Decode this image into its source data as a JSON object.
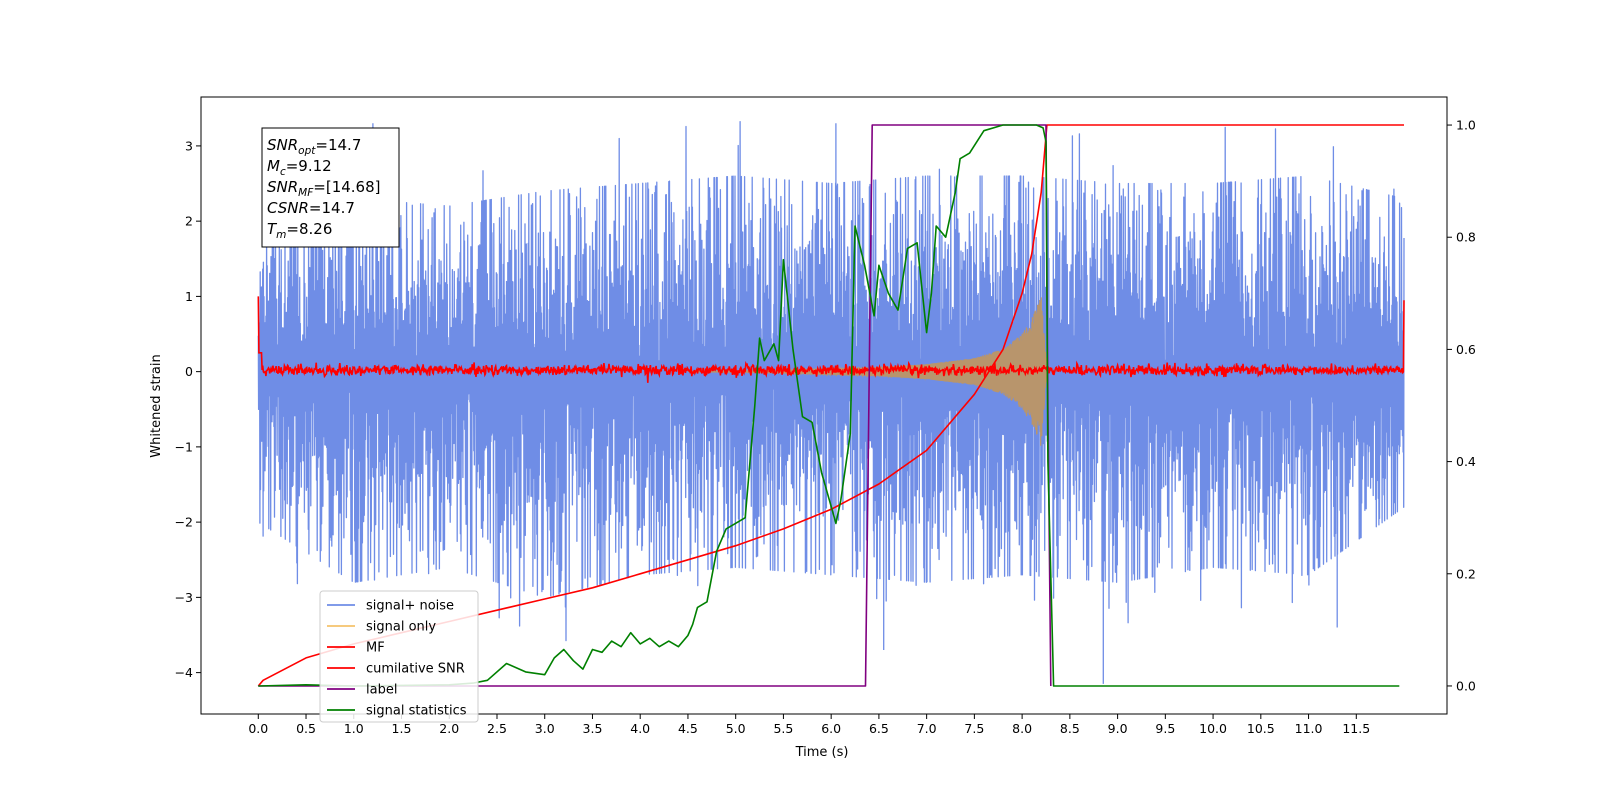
{
  "chart_data": {
    "type": "line",
    "xlabel": "Time (s)",
    "ylabel": "Whitened strain",
    "xlim": [
      -0.6,
      12.45
    ],
    "ylim": [
      -4.55,
      3.65
    ],
    "y2lim": [
      -0.05,
      1.05
    ],
    "x_ticks": [
      "0.0",
      "0.5",
      "1.0",
      "1.5",
      "2.0",
      "2.5",
      "3.0",
      "3.5",
      "4.0",
      "4.5",
      "5.0",
      "5.5",
      "6.0",
      "6.5",
      "7.0",
      "7.5",
      "8.0",
      "8.5",
      "9.0",
      "9.5",
      "10.0",
      "10.5",
      "11.0",
      "11.5"
    ],
    "y_ticks": [
      "3",
      "2",
      "1",
      "0",
      "−1",
      "−2",
      "−3",
      "−4"
    ],
    "y2_ticks": [
      "1.0",
      "0.8",
      "0.6",
      "0.4",
      "0.2",
      "0.0"
    ],
    "annotation": {
      "lines": [
        {
          "base": "SNR",
          "sub": "opt",
          "value": "=14.7"
        },
        {
          "base": "M",
          "sub": "c",
          "value": "=9.12"
        },
        {
          "base": "SNR",
          "sub": "MF",
          "value": "=[14.68]"
        },
        {
          "base": "CSNR",
          "sub": "",
          "value": "=14.7"
        },
        {
          "base": "T",
          "sub": "m",
          "value": "=8.26"
        }
      ]
    },
    "legend": {
      "position": "lower-left",
      "entries": [
        {
          "label": "signal+ noise",
          "color": "#6f8de6"
        },
        {
          "label": "signal only",
          "color": "#f5c26b"
        },
        {
          "label": "MF",
          "color": "#ff0000"
        },
        {
          "label": "cumilative SNR",
          "color": "#ff0000"
        },
        {
          "label": "label",
          "color": "#800080"
        },
        {
          "label": "signal statistics",
          "color": "#008000"
        }
      ]
    },
    "series": [
      {
        "name": "signal+ noise",
        "axis": "left",
        "color": "#6f8de6",
        "x_range": [
          0,
          12.0
        ],
        "envelope_upper": [
          [
            0,
            1.8
          ],
          [
            1,
            2.3
          ],
          [
            2,
            2.2
          ],
          [
            3,
            2.4
          ],
          [
            4,
            2.5
          ],
          [
            5,
            2.6
          ],
          [
            6,
            2.5
          ],
          [
            7,
            2.6
          ],
          [
            8,
            2.6
          ],
          [
            9,
            2.5
          ],
          [
            10,
            2.5
          ],
          [
            11,
            2.6
          ],
          [
            12,
            2.3
          ]
        ],
        "envelope_lower": [
          [
            0,
            -2.0
          ],
          [
            1,
            -2.8
          ],
          [
            2,
            -2.6
          ],
          [
            3,
            -3.0
          ],
          [
            4,
            -2.7
          ],
          [
            5,
            -2.6
          ],
          [
            6,
            -2.7
          ],
          [
            7,
            -2.8
          ],
          [
            8,
            -2.7
          ],
          [
            9,
            -2.8
          ],
          [
            10,
            -2.6
          ],
          [
            11,
            -2.7
          ],
          [
            12,
            -1.8
          ]
        ],
        "max_peak": 3.3,
        "min_peak": -4.15
      },
      {
        "name": "signal only",
        "axis": "left",
        "color": "#f5c26b",
        "envelope": [
          [
            4.5,
            0.005
          ],
          [
            5.0,
            0.01
          ],
          [
            5.5,
            0.02
          ],
          [
            6.0,
            0.04
          ],
          [
            6.5,
            0.06
          ],
          [
            7.0,
            0.1
          ],
          [
            7.5,
            0.18
          ],
          [
            7.8,
            0.3
          ],
          [
            8.0,
            0.5
          ],
          [
            8.1,
            0.7
          ],
          [
            8.2,
            1.0
          ],
          [
            8.26,
            0.0
          ]
        ]
      },
      {
        "name": "MF",
        "axis": "left",
        "color": "#ff0000",
        "x_range": [
          0,
          12.0
        ],
        "level": 0.02,
        "amplitude": 0.1,
        "edge_value": 1.0
      },
      {
        "name": "cumilative SNR",
        "axis": "right",
        "color": "#ff0000",
        "x": [
          0.0,
          0.05,
          0.5,
          1.0,
          1.5,
          2.0,
          2.5,
          3.0,
          3.5,
          4.0,
          4.5,
          5.0,
          5.5,
          6.0,
          6.5,
          7.0,
          7.5,
          7.8,
          8.0,
          8.1,
          8.2,
          8.26,
          8.3,
          12.0
        ],
        "values": [
          0.0,
          0.01,
          0.05,
          0.075,
          0.095,
          0.115,
          0.135,
          0.155,
          0.175,
          0.2,
          0.225,
          0.25,
          0.28,
          0.315,
          0.36,
          0.42,
          0.52,
          0.6,
          0.7,
          0.77,
          0.88,
          1.0,
          1.0,
          1.0
        ]
      },
      {
        "name": "label",
        "axis": "right",
        "color": "#800080",
        "x": [
          0.0,
          6.36,
          6.43,
          8.25,
          8.27,
          8.3
        ],
        "values": [
          0.0,
          0.0,
          1.0,
          1.0,
          0.5,
          0.0
        ]
      },
      {
        "name": "signal statistics",
        "axis": "right",
        "color": "#008000",
        "x": [
          0.0,
          0.5,
          1.0,
          1.5,
          2.0,
          2.25,
          2.4,
          2.6,
          2.8,
          3.0,
          3.1,
          3.2,
          3.3,
          3.4,
          3.5,
          3.6,
          3.7,
          3.8,
          3.9,
          4.0,
          4.1,
          4.2,
          4.3,
          4.4,
          4.5,
          4.55,
          4.6,
          4.7,
          4.8,
          4.9,
          5.0,
          5.1,
          5.2,
          5.25,
          5.3,
          5.4,
          5.45,
          5.5,
          5.6,
          5.7,
          5.8,
          5.9,
          6.0,
          6.05,
          6.1,
          6.2,
          6.25,
          6.35,
          6.45,
          6.5,
          6.6,
          6.7,
          6.8,
          6.9,
          7.0,
          7.05,
          7.1,
          7.2,
          7.3,
          7.35,
          7.45,
          7.6,
          7.8,
          8.0,
          8.15,
          8.22,
          8.25,
          8.27,
          8.33,
          8.4,
          9.0,
          10.0,
          11.0,
          11.95
        ],
        "values": [
          0.0,
          0.002,
          0.0,
          0.001,
          0.002,
          0.005,
          0.01,
          0.04,
          0.025,
          0.02,
          0.05,
          0.065,
          0.045,
          0.03,
          0.065,
          0.06,
          0.08,
          0.07,
          0.095,
          0.075,
          0.085,
          0.07,
          0.08,
          0.07,
          0.09,
          0.11,
          0.14,
          0.15,
          0.24,
          0.28,
          0.29,
          0.3,
          0.5,
          0.62,
          0.58,
          0.61,
          0.58,
          0.76,
          0.6,
          0.48,
          0.47,
          0.38,
          0.32,
          0.29,
          0.33,
          0.45,
          0.82,
          0.75,
          0.66,
          0.75,
          0.7,
          0.67,
          0.78,
          0.79,
          0.63,
          0.7,
          0.82,
          0.8,
          0.88,
          0.94,
          0.95,
          0.99,
          1.0,
          1.0,
          1.0,
          0.995,
          0.97,
          0.4,
          0.0,
          0.0,
          0.0,
          0.0,
          0.0,
          0.0
        ]
      }
    ]
  }
}
